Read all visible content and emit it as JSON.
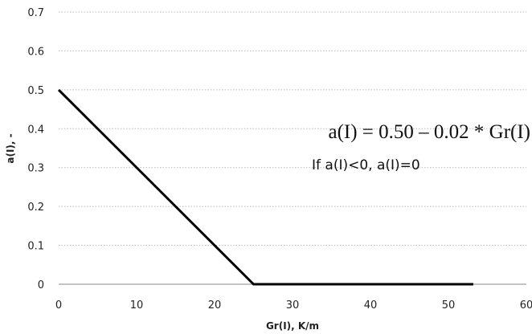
{
  "chart_data": {
    "type": "line",
    "xlabel": "Gr(I), K/m",
    "ylabel": "a(I), -",
    "xlim": [
      0,
      60
    ],
    "ylim": [
      0,
      0.7
    ],
    "x_ticks": [
      0,
      10,
      20,
      30,
      40,
      50,
      60
    ],
    "x_tick_labels": [
      "0",
      "10",
      "20",
      "30",
      "40",
      "50",
      "60"
    ],
    "y_ticks": [
      0,
      0.1,
      0.2,
      0.3,
      0.4,
      0.5,
      0.6,
      0.7
    ],
    "y_tick_labels": [
      "0",
      "0.1",
      "0.2",
      "0.3",
      "0.4",
      "0.5",
      "0.6",
      "0.7"
    ],
    "grid": "horizontal",
    "series": [
      {
        "color": "#000000",
        "points": [
          {
            "x": 0,
            "y": 0.5
          },
          {
            "x": 25,
            "y": 0
          },
          {
            "x": 53.2,
            "y": 0
          }
        ]
      }
    ],
    "annotations": {
      "formula": "a(I) = 0.50 – 0.02 * Gr(I)",
      "condition": "If a(I)<0, a(I)=0"
    }
  }
}
